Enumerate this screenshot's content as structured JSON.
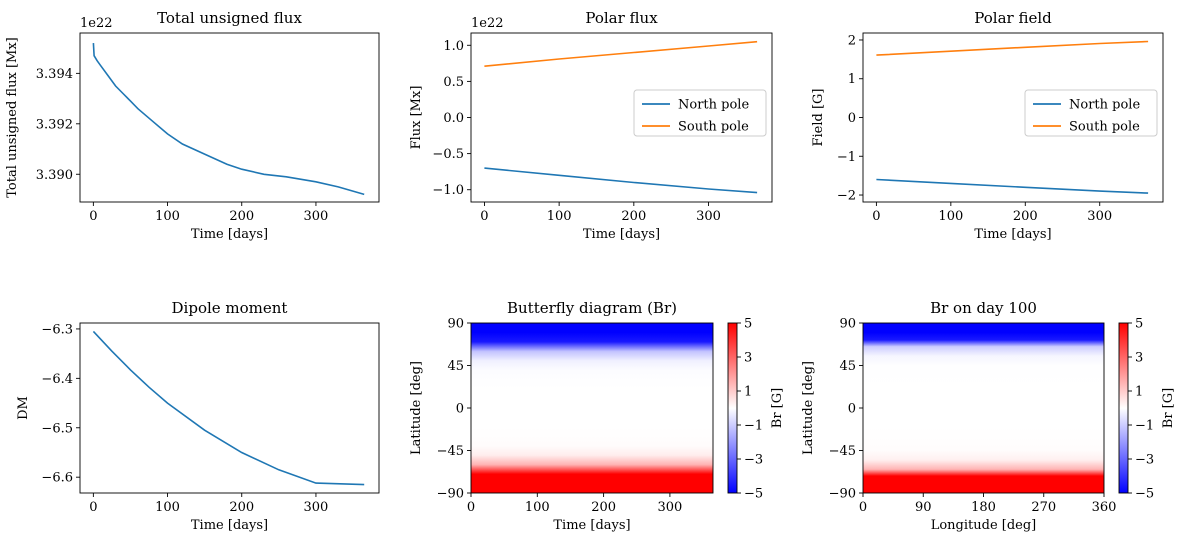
{
  "colors": {
    "series1": "#1f77b4",
    "series2": "#ff7f0e",
    "cmap_low": "#0000ff",
    "cmap_mid": "#ffffff",
    "cmap_high": "#ff0000"
  },
  "chart_data": [
    {
      "id": "total-unsigned-flux",
      "type": "line",
      "title": "Total unsigned flux",
      "xlabel": "Time [days]",
      "ylabel": "Total unsigned flux [Mx]",
      "offset_text": "1e22",
      "xlim": [
        -18,
        385
      ],
      "ylim": [
        3.3889,
        3.3956
      ],
      "xticks": [
        0,
        100,
        200,
        300
      ],
      "xtick_labels": [
        "0",
        "100",
        "200",
        "300"
      ],
      "yticks": [
        3.39,
        3.392,
        3.394
      ],
      "ytick_labels": [
        "3.390",
        "3.392",
        "3.394"
      ],
      "series": [
        {
          "name": "Total unsigned flux",
          "color": "#1f77b4",
          "x": [
            0,
            1,
            5,
            10,
            20,
            30,
            40,
            50,
            60,
            80,
            100,
            120,
            150,
            180,
            200,
            230,
            260,
            300,
            330,
            365
          ],
          "y": [
            3.3952,
            3.3947,
            3.3945,
            3.3943,
            3.3939,
            3.3935,
            3.3932,
            3.3929,
            3.3926,
            3.3921,
            3.3916,
            3.3912,
            3.3908,
            3.3904,
            3.3902,
            3.39,
            3.3899,
            3.3897,
            3.3895,
            3.3892
          ]
        }
      ]
    },
    {
      "id": "polar-flux",
      "type": "line",
      "title": "Polar flux",
      "xlabel": "Time [days]",
      "ylabel": "Flux [Mx]",
      "offset_text": "1e22",
      "xlim": [
        -18,
        385
      ],
      "ylim": [
        -1.17,
        1.17
      ],
      "xticks": [
        0,
        100,
        200,
        300
      ],
      "xtick_labels": [
        "0",
        "100",
        "200",
        "300"
      ],
      "yticks": [
        -1.0,
        -0.5,
        0.0,
        0.5,
        1.0
      ],
      "ytick_labels": [
        "−1.0",
        "−0.5",
        "0.0",
        "0.5",
        "1.0"
      ],
      "legend": {
        "location": "center-right",
        "entries": [
          "North pole",
          "South pole"
        ]
      },
      "series": [
        {
          "name": "North pole",
          "color": "#1f77b4",
          "x": [
            0,
            100,
            200,
            300,
            365
          ],
          "y": [
            -0.7,
            -0.8,
            -0.9,
            -0.99,
            -1.04
          ]
        },
        {
          "name": "South pole",
          "color": "#ff7f0e",
          "x": [
            0,
            100,
            200,
            300,
            365
          ],
          "y": [
            0.71,
            0.81,
            0.9,
            0.99,
            1.05
          ]
        }
      ]
    },
    {
      "id": "polar-field",
      "type": "line",
      "title": "Polar field",
      "xlabel": "Time [days]",
      "ylabel": "Field [G]",
      "xlim": [
        -18,
        385
      ],
      "ylim": [
        -2.18,
        2.18
      ],
      "xticks": [
        0,
        100,
        200,
        300
      ],
      "xtick_labels": [
        "0",
        "100",
        "200",
        "300"
      ],
      "yticks": [
        -2,
        -1,
        0,
        1,
        2
      ],
      "ytick_labels": [
        "−2",
        "−1",
        "0",
        "1",
        "2"
      ],
      "legend": {
        "location": "center-right",
        "entries": [
          "North pole",
          "South pole"
        ]
      },
      "series": [
        {
          "name": "North pole",
          "color": "#1f77b4",
          "x": [
            0,
            100,
            200,
            300,
            365
          ],
          "y": [
            -1.6,
            -1.7,
            -1.8,
            -1.9,
            -1.95
          ]
        },
        {
          "name": "South pole",
          "color": "#ff7f0e",
          "x": [
            0,
            100,
            200,
            300,
            365
          ],
          "y": [
            1.61,
            1.71,
            1.81,
            1.91,
            1.96
          ]
        }
      ]
    },
    {
      "id": "dipole-moment",
      "type": "line",
      "title": "Dipole moment",
      "xlabel": "Time [days]",
      "ylabel": "DM",
      "xlim": [
        -18,
        385
      ],
      "ylim": [
        -6.632,
        -6.288
      ],
      "xticks": [
        0,
        100,
        200,
        300
      ],
      "xtick_labels": [
        "0",
        "100",
        "200",
        "300"
      ],
      "yticks": [
        -6.3,
        -6.4,
        -6.5,
        -6.6
      ],
      "ytick_labels": [
        "−6.3",
        "−6.4",
        "−6.5",
        "−6.6"
      ],
      "series": [
        {
          "name": "DM",
          "color": "#1f77b4",
          "x": [
            0,
            25,
            50,
            75,
            100,
            150,
            200,
            250,
            300,
            365
          ],
          "y": [
            -6.305,
            -6.345,
            -6.383,
            -6.418,
            -6.45,
            -6.505,
            -6.55,
            -6.585,
            -6.612,
            -6.615
          ]
        }
      ]
    },
    {
      "id": "butterfly-diagram",
      "type": "heatmap",
      "title": "Butterfly diagram (Br)",
      "xlabel": "Time [days]",
      "ylabel": "Latitude [deg]",
      "xlim": [
        0,
        365
      ],
      "ylim": [
        -90,
        90
      ],
      "xticks": [
        0,
        100,
        200,
        300
      ],
      "xtick_labels": [
        "0",
        "100",
        "200",
        "300"
      ],
      "yticks": [
        90,
        45,
        0,
        -45,
        -90
      ],
      "ytick_labels": [
        "90",
        "45",
        "0",
        "−45",
        "−90"
      ],
      "colorbar": {
        "label": "Br [G]",
        "range": [
          -5,
          5
        ],
        "ticks": [
          5,
          3,
          1,
          -1,
          -3,
          -5
        ],
        "tick_labels": [
          "5",
          "3",
          "1",
          "−1",
          "−3",
          "−5"
        ]
      },
      "profile_lat": [
        90,
        80,
        70,
        60,
        50,
        40,
        20,
        0,
        -20,
        -40,
        -50,
        -60,
        -70,
        -80,
        -90
      ],
      "profile_br": [
        -5,
        -5,
        -4.5,
        -1.2,
        -0.3,
        -0.05,
        0,
        0,
        0,
        0.05,
        0.35,
        1.5,
        5,
        5,
        5
      ]
    },
    {
      "id": "br-on-day-100",
      "type": "heatmap",
      "title": "Br on day 100",
      "xlabel": "Longitude [deg]",
      "ylabel": "Latitude [deg]",
      "xlim": [
        0,
        360
      ],
      "ylim": [
        -90,
        90
      ],
      "xticks": [
        0,
        90,
        180,
        270,
        360
      ],
      "xtick_labels": [
        "0",
        "90",
        "180",
        "270",
        "360"
      ],
      "yticks": [
        90,
        45,
        0,
        -45,
        -90
      ],
      "ytick_labels": [
        "90",
        "45",
        "0",
        "−45",
        "−90"
      ],
      "colorbar": {
        "label": "Br [G]",
        "range": [
          -5,
          5
        ],
        "ticks": [
          5,
          3,
          1,
          -1,
          -3,
          -5
        ],
        "tick_labels": [
          "5",
          "3",
          "1",
          "−1",
          "−3",
          "−5"
        ]
      },
      "profile_lat": [
        90,
        80,
        72,
        65,
        55,
        45,
        20,
        0,
        -20,
        -45,
        -55,
        -65,
        -72,
        -80,
        -90
      ],
      "profile_br": [
        -5,
        -5,
        -4.5,
        -1.0,
        -0.2,
        -0.02,
        0,
        0,
        0,
        0.05,
        0.3,
        1.5,
        5,
        5,
        5
      ]
    }
  ]
}
